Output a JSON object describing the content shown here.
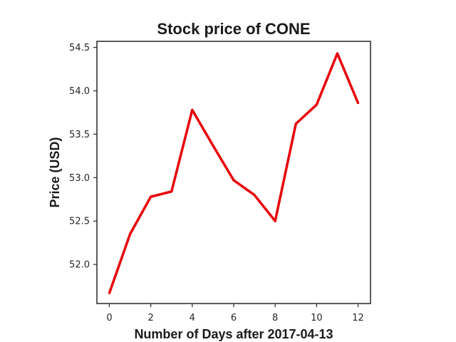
{
  "chart_data": {
    "type": "line",
    "title": "Stock price of CONE",
    "xlabel": "Number of Days after 2017-04-13",
    "ylabel": "Price (USD)",
    "xlim": [
      -0.6,
      12.6
    ],
    "ylim": [
      51.55,
      54.57
    ],
    "xticks": [
      0,
      2,
      4,
      6,
      8,
      10,
      12
    ],
    "yticks": [
      52.0,
      52.5,
      53.0,
      53.5,
      54.0,
      54.5
    ],
    "ytick_format": "one-decimal",
    "grid": false,
    "line_color": "#e8000b",
    "x": [
      0,
      1,
      2,
      3,
      4,
      5,
      6,
      7,
      8,
      9,
      10,
      11,
      12
    ],
    "y": [
      51.67,
      52.35,
      52.78,
      52.84,
      53.78,
      53.37,
      52.97,
      52.8,
      52.5,
      53.62,
      53.84,
      54.43,
      53.86
    ]
  }
}
